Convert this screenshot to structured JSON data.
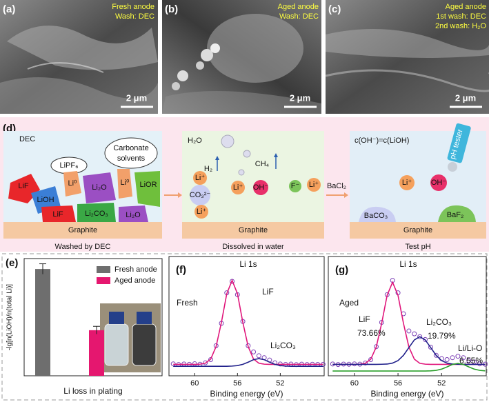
{
  "panels": {
    "a": {
      "label": "(a)",
      "lines": [
        "Fresh anode",
        "Wash: DEC"
      ],
      "scale": "2 μm"
    },
    "b": {
      "label": "(b)",
      "lines": [
        "Aged anode",
        "Wash: DEC"
      ],
      "scale": "2 μm"
    },
    "c": {
      "label": "(c)",
      "lines": [
        "Aged anode",
        "1st wash: DEC",
        "2nd wash: H₂O"
      ],
      "scale": "2 μm"
    },
    "d": {
      "label": "(d)",
      "left": {
        "title": "DEC",
        "bubbles": [
          "LiPF₆",
          "Carbonate",
          "solvents"
        ],
        "species": [
          "LiF",
          "LiOH",
          "Li⁰",
          "Li₂O",
          "Li⁰",
          "LiOR",
          "LiF",
          "Li₂CO₃",
          "Li₂O"
        ],
        "substrate": "Graphite",
        "caption": "Washed by DEC"
      },
      "middle": {
        "title": "H₂O",
        "gases": [
          "H₂",
          "CH₄"
        ],
        "species": [
          "Li⁺",
          "CO₃²⁻",
          "Li⁺",
          "OH⁻",
          "F⁻",
          "Li⁺",
          "Li⁺"
        ],
        "substrate": "Graphite",
        "caption": "Dissolved in water"
      },
      "reagent": "BaCl₂",
      "right": {
        "title": "c(OH⁻)=c(LiOH)",
        "probe": "pH tester",
        "species": [
          "Li⁺",
          "OH⁻",
          "BaCO₃",
          "BaF₂"
        ],
        "substrate": "Graphite",
        "caption": "Test pH"
      }
    }
  },
  "chart_data": [
    {
      "type": "bar",
      "label": "(e)",
      "xlabel": "Li loss in plating",
      "ylabel": "-lg[n(LiOH)/n(total Li)]",
      "ylim": [
        0,
        4.5
      ],
      "series": [
        {
          "name": "Fresh anode",
          "color": "#6e6e6e",
          "values": [
            4.1
          ],
          "errors": [
            0.2
          ]
        },
        {
          "name": "Aged anode",
          "color": "#e5176f",
          "values": [
            1.75
          ],
          "errors": [
            0.15
          ]
        }
      ]
    },
    {
      "type": "xps",
      "label": "(f)",
      "xlabel": "Binding energy (eV)",
      "annotations": [
        "Li 1s",
        "LiF",
        "Fresh",
        "Li₂CO₃"
      ],
      "xlim": [
        62.4,
        47.9
      ],
      "xticks": [
        60,
        56,
        52
      ],
      "ylim": [
        0,
        125
      ],
      "x": [
        62,
        61.5,
        61,
        60.5,
        60,
        59.5,
        59,
        58.5,
        58,
        57.5,
        57,
        56.5,
        56,
        55.5,
        55,
        54.5,
        54,
        53.5,
        53,
        52.5,
        52,
        51.5,
        51,
        50.5,
        50,
        49.5,
        49,
        48.5,
        48
      ],
      "series": [
        {
          "color": "#7b3fb5",
          "marker": "circle",
          "values": [
            12.5,
            11.8,
            12.4,
            12.0,
            12.6,
            12.1,
            13.6,
            17.0,
            31.5,
            55,
            87,
            99,
            85,
            57,
            31.5,
            25,
            21,
            19,
            16.5,
            13.6,
            12.4,
            11.9,
            12.3,
            11.7,
            12.2,
            11.8,
            12.1,
            11.9,
            12.0
          ]
        },
        {
          "color": "#e0157a",
          "values": [
            12,
            12,
            12,
            12,
            12,
            12.2,
            13.2,
            17.5,
            30.6,
            56,
            86,
            100,
            86,
            56,
            30.6,
            17.5,
            13.2,
            12.2,
            12,
            12,
            12,
            12,
            12,
            12,
            12,
            12,
            12,
            12,
            12
          ]
        },
        {
          "color": "#1f1f8a",
          "values": [
            10,
            10,
            10,
            10,
            10,
            10,
            10,
            10,
            10,
            10,
            10,
            10.2,
            10.7,
            12,
            14.3,
            16.9,
            18,
            16.9,
            14.3,
            12,
            10.7,
            10.2,
            10,
            10,
            10,
            10,
            10,
            10,
            10
          ]
        }
      ]
    },
    {
      "type": "xps",
      "label": "(g)",
      "xlabel": "Binding energy (eV)",
      "annotations": [
        "Li 1s",
        "Aged",
        "LiF",
        "73.66%",
        "Li₂CO₃",
        "19.79%",
        "Li/Li-O",
        "6.55%"
      ],
      "xlim": [
        62.4,
        47.9
      ],
      "xticks": [
        60,
        56,
        52
      ],
      "ylim": [
        0,
        125
      ],
      "x": [
        62,
        61.5,
        61,
        60.5,
        60,
        59.5,
        59,
        58.5,
        58,
        57.5,
        57,
        56.5,
        56,
        55.5,
        55,
        54.5,
        54,
        53.5,
        53,
        52.5,
        52,
        51.5,
        51,
        50.5,
        50,
        49.5,
        49,
        48.5,
        48
      ],
      "series": [
        {
          "color": "#7b3fb5",
          "marker": "circle",
          "values": [
            12.4,
            11.8,
            12.3,
            12.1,
            12.5,
            12.2,
            13.4,
            17.0,
            30.5,
            56,
            85,
            100,
            87,
            65,
            47,
            44,
            41,
            38,
            30,
            21.5,
            18,
            17,
            19,
            20.5,
            19,
            16,
            14.5,
            12.5,
            12.2
          ]
        },
        {
          "color": "#e0157a",
          "values": [
            12,
            12,
            12,
            12,
            12,
            12.2,
            13.1,
            17.4,
            30.1,
            55,
            84.3,
            98,
            84.3,
            55,
            30.1,
            17.4,
            13.1,
            12.2,
            12,
            12,
            12,
            12,
            12,
            12,
            12,
            12,
            12,
            12,
            12
          ]
        },
        {
          "color": "#1f1f8a",
          "values": [
            12,
            12,
            12,
            12,
            12,
            12,
            12,
            12,
            12,
            12.1,
            12.3,
            13.3,
            15.9,
            21.4,
            29.6,
            37.6,
            41,
            37.6,
            29.6,
            21.4,
            15.9,
            13.3,
            12.3,
            12.1,
            12,
            12,
            12,
            12,
            12
          ]
        },
        {
          "color": "#2ca02c",
          "values": [
            5,
            5,
            5,
            5,
            5,
            5,
            5,
            5,
            5,
            5,
            5,
            5,
            5,
            5,
            5,
            5,
            5,
            5,
            5.2,
            5.7,
            7,
            9.3,
            11.9,
            13,
            11.9,
            9.3,
            7,
            5.7,
            5.2
          ]
        }
      ]
    }
  ]
}
